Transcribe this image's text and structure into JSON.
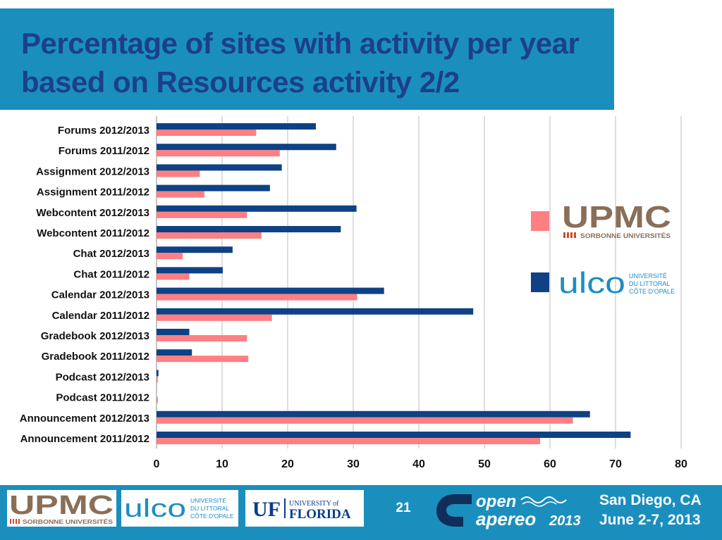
{
  "title": "Percentage of sites with activity per year based on Resources activity 2/2",
  "colors": {
    "upmc": "#ff7f82",
    "ulco": "#0e4285",
    "header_bg": "#1a8fbd",
    "title_text": "#1c3f8c",
    "upmc_brown": "#8a6e58",
    "ulco_blue": "#1c8dc4",
    "uf_blue": "#0a3c8c"
  },
  "chart_data": {
    "type": "bar",
    "orientation": "horizontal",
    "categories": [
      "Forums 2012/2013",
      "Forums 2011/2012",
      "Assignment 2012/2013",
      "Assignment 2011/2012",
      "Webcontent 2012/2013",
      "Webcontent 2011/2012",
      "Chat 2012/2013",
      "Chat 2011/2012",
      "Calendar 2012/2013",
      "Calendar 2011/2012",
      "Gradebook 2012/2013",
      "Gradebook 2011/2012",
      "Podcast 2012/2013",
      "Podcast 2011/2012",
      "Announcement 2012/2013",
      "Announcement 2011/2012"
    ],
    "series": [
      {
        "name": "UPMC",
        "values": [
          15.2,
          18.8,
          6.6,
          7.3,
          13.8,
          16.0,
          4.0,
          5.0,
          30.6,
          17.6,
          13.8,
          14.0,
          0.2,
          0.2,
          63.5,
          58.5
        ]
      },
      {
        "name": "ULCO",
        "values": [
          24.3,
          27.4,
          19.1,
          17.3,
          30.5,
          28.1,
          11.6,
          10.1,
          34.7,
          48.3,
          5.0,
          5.4,
          0.3,
          0,
          66.1,
          72.3
        ]
      }
    ],
    "xlim": [
      0,
      80
    ],
    "xticks": [
      "0",
      "10",
      "20",
      "30",
      "40",
      "50",
      "60",
      "70",
      "80"
    ],
    "grid": true,
    "legend_position": "right"
  },
  "legend": {
    "upmc": {
      "name": "UPMC",
      "sub": "SORBONNE UNIVERSITÉS"
    },
    "ulco": {
      "name": "ulco",
      "sub1": "UNIVERSITÉ",
      "sub2": "DU LITTORAL",
      "sub3": "CÔTE D'OPALE"
    }
  },
  "footer": {
    "page_number": "21",
    "location": "San Diego, CA",
    "dates": "June 2-7, 2013",
    "upmc": {
      "name": "UPMC",
      "sub": "SORBONNE UNIVERSITÉS"
    },
    "ulco": {
      "name": "ulco",
      "sub1": "UNIVERSITÉ",
      "sub2": "DU LITTORAL",
      "sub3": "CÔTE D'OPALE"
    },
    "uf": {
      "mark": "UF",
      "line1": "UNIVERSITY of",
      "line2": "FLORIDA"
    },
    "apereo": {
      "line1": "open",
      "line2": "apereo",
      "year": "2013"
    }
  }
}
